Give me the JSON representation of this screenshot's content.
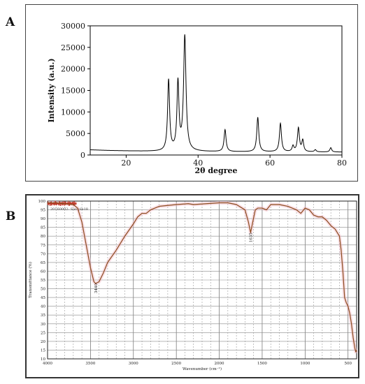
{
  "panels": {
    "a": "A",
    "b": "B"
  },
  "chart_data": [
    {
      "type": "line",
      "xlabel": "2θ degree",
      "ylabel": "Intensity (a.u.)",
      "xlim": [
        10,
        80
      ],
      "ylim": [
        0,
        30000
      ],
      "xticks": [
        20,
        40,
        60,
        80
      ],
      "yticks": [
        0,
        5000,
        10000,
        15000,
        20000,
        25000,
        30000
      ],
      "grid": false,
      "series": [
        {
          "color": "#000000",
          "peaks": [
            {
              "x": 31.8,
              "height": 16400,
              "width": 0.33
            },
            {
              "x": 34.4,
              "height": 15700,
              "width": 0.33
            },
            {
              "x": 36.3,
              "height": 26600,
              "width": 0.4
            },
            {
              "x": 47.5,
              "height": 5100,
              "width": 0.33
            },
            {
              "x": 56.6,
              "height": 8000,
              "width": 0.33
            },
            {
              "x": 62.9,
              "height": 6600,
              "width": 0.33
            },
            {
              "x": 66.4,
              "height": 1300,
              "width": 0.3
            },
            {
              "x": 67.9,
              "height": 5500,
              "width": 0.33
            },
            {
              "x": 69.1,
              "height": 2600,
              "width": 0.3
            },
            {
              "x": 72.6,
              "height": 500,
              "width": 0.3
            },
            {
              "x": 76.9,
              "height": 1000,
              "width": 0.3
            }
          ],
          "baseline": [
            [
              10,
              1200
            ],
            [
              15,
              1050
            ],
            [
              20,
              950
            ],
            [
              25,
              870
            ],
            [
              30,
              820
            ],
            [
              33,
              900
            ],
            [
              37,
              850
            ],
            [
              42,
              780
            ],
            [
              50,
              740
            ],
            [
              60,
              720
            ],
            [
              70,
              700
            ],
            [
              80,
              680
            ]
          ]
        }
      ]
    },
    {
      "type": "line",
      "xlabel": "Wavenumber (cm⁻¹)",
      "ylabel": "Transmittance (%)",
      "xlim": [
        4000,
        400
      ],
      "ylim": [
        10,
        100
      ],
      "xticks": [
        4000,
        3500,
        3000,
        2500,
        2000,
        1500,
        1000,
        500
      ],
      "yticks": [
        10,
        15,
        20,
        25,
        30,
        35,
        40,
        45,
        50,
        55,
        60,
        65,
        70,
        75,
        80,
        85,
        90,
        95,
        100
      ],
      "grid": true,
      "legend_text": "20160002: Sample18",
      "annotations": [
        {
          "x": 3440,
          "y": 53,
          "text": "3440"
        },
        {
          "x": 1635,
          "y": 82,
          "text": "1635"
        }
      ],
      "series": [
        {
          "color": "#8b4a1c",
          "points": [
            [
              4000,
              99
            ],
            [
              3900,
              99
            ],
            [
              3800,
              98.5
            ],
            [
              3700,
              98
            ],
            [
              3650,
              96
            ],
            [
              3600,
              88
            ],
            [
              3550,
              75
            ],
            [
              3500,
              62
            ],
            [
              3460,
              54
            ],
            [
              3440,
              53
            ],
            [
              3400,
              54
            ],
            [
              3350,
              59
            ],
            [
              3300,
              65
            ],
            [
              3200,
              72
            ],
            [
              3100,
              80
            ],
            [
              3000,
              87
            ],
            [
              2950,
              91
            ],
            [
              2900,
              93
            ],
            [
              2850,
              93
            ],
            [
              2800,
              95
            ],
            [
              2700,
              97
            ],
            [
              2500,
              98
            ],
            [
              2360,
              98.5
            ],
            [
              2300,
              98
            ],
            [
              2000,
              99
            ],
            [
              1900,
              99
            ],
            [
              1800,
              98
            ],
            [
              1700,
              95
            ],
            [
              1660,
              88
            ],
            [
              1635,
              82
            ],
            [
              1610,
              88
            ],
            [
              1580,
              95
            ],
            [
              1550,
              96
            ],
            [
              1500,
              96
            ],
            [
              1450,
              95
            ],
            [
              1400,
              98
            ],
            [
              1300,
              98
            ],
            [
              1200,
              97
            ],
            [
              1100,
              95
            ],
            [
              1050,
              93
            ],
            [
              1000,
              96
            ],
            [
              950,
              95
            ],
            [
              900,
              92
            ],
            [
              850,
              91
            ],
            [
              800,
              91
            ],
            [
              750,
              89
            ],
            [
              700,
              86
            ],
            [
              650,
              84
            ],
            [
              600,
              80
            ],
            [
              580,
              72
            ],
            [
              560,
              60
            ],
            [
              540,
              45
            ],
            [
              520,
              42
            ],
            [
              500,
              40
            ],
            [
              480,
              36
            ],
            [
              460,
              30
            ],
            [
              440,
              22
            ],
            [
              420,
              16
            ],
            [
              410,
              14
            ],
            [
              400,
              15
            ]
          ]
        }
      ]
    }
  ]
}
